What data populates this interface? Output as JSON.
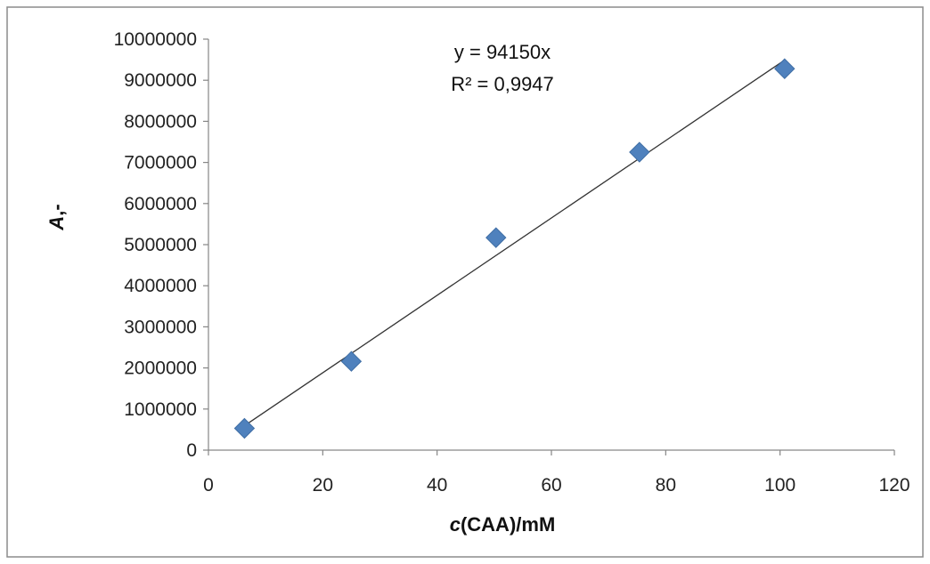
{
  "chart_data": {
    "type": "scatter",
    "xlabel_italic": "c",
    "xlabel_rest": "(CAA)/mM",
    "ylabel_italic": "A",
    "ylabel_rest": ",-",
    "xlim": [
      0,
      120
    ],
    "ylim": [
      0,
      10000000
    ],
    "x_ticks": [
      0,
      20,
      40,
      60,
      80,
      100,
      120
    ],
    "x_tick_labels": [
      "0",
      "20",
      "40",
      "60",
      "80",
      "100",
      "120"
    ],
    "y_ticks": [
      0,
      1000000,
      2000000,
      3000000,
      4000000,
      5000000,
      6000000,
      7000000,
      8000000,
      9000000,
      10000000
    ],
    "y_tick_labels": [
      "0",
      "1000000",
      "2000000",
      "3000000",
      "4000000",
      "5000000",
      "6000000",
      "7000000",
      "8000000",
      "9000000",
      "10000000"
    ],
    "grid": false,
    "series": [
      {
        "marker": "diamond",
        "color": "#4F81BD",
        "x": [
          6.3,
          25.0,
          50.3,
          75.4,
          100.8
        ],
        "y": [
          530000,
          2160000,
          5170000,
          7250000,
          9280000
        ]
      }
    ],
    "trendline": {
      "slope": 94150,
      "x_range": [
        6.3,
        100.8
      ],
      "color": "#333333",
      "equation": "y = 94150x",
      "r_squared": "R² = 0,9947"
    }
  }
}
